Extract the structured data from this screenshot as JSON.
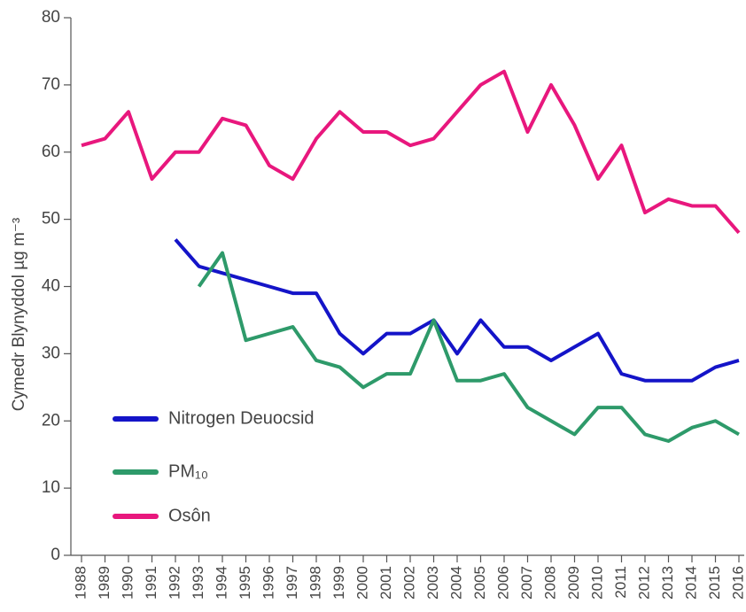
{
  "chart_data": {
    "type": "line",
    "y_label": "Cymedr Blynyddol µg m⁻³",
    "categories": [
      "1988",
      "1989",
      "1990",
      "1991",
      "1992",
      "1993",
      "1994",
      "1995",
      "1996",
      "1997",
      "1998",
      "1999",
      "2000",
      "2001",
      "2002",
      "2003",
      "2004",
      "2005",
      "2006",
      "2007",
      "2008",
      "2009",
      "2010",
      "2011",
      "2012",
      "2013",
      "2014",
      "2015",
      "2016"
    ],
    "series": [
      {
        "name": "Nitrogen Deuocsid",
        "color": "#1414c8",
        "values": [
          null,
          null,
          null,
          null,
          47,
          43,
          42,
          41,
          40,
          39,
          39,
          33,
          30,
          33,
          33,
          35,
          30,
          35,
          31,
          31,
          29,
          31,
          33,
          27,
          26,
          26,
          26,
          28,
          29
        ]
      },
      {
        "name": "PM₁₀",
        "color": "#2e9a6a",
        "values": [
          null,
          null,
          null,
          null,
          null,
          40,
          45,
          32,
          33,
          34,
          29,
          28,
          25,
          27,
          27,
          35,
          26,
          26,
          27,
          22,
          20,
          18,
          22,
          22,
          18,
          17,
          19,
          20,
          18
        ]
      },
      {
        "name": "Osôn",
        "color": "#e8177d",
        "values": [
          61,
          62,
          66,
          56,
          60,
          60,
          65,
          64,
          58,
          56,
          62,
          66,
          63,
          63,
          61,
          62,
          66,
          70,
          72,
          63,
          70,
          64,
          56,
          61,
          51,
          53,
          52,
          52,
          48
        ]
      }
    ],
    "ylim": [
      0,
      80
    ],
    "yticks": [
      0,
      10,
      20,
      30,
      40,
      50,
      60,
      70,
      80
    ],
    "grid": false
  }
}
